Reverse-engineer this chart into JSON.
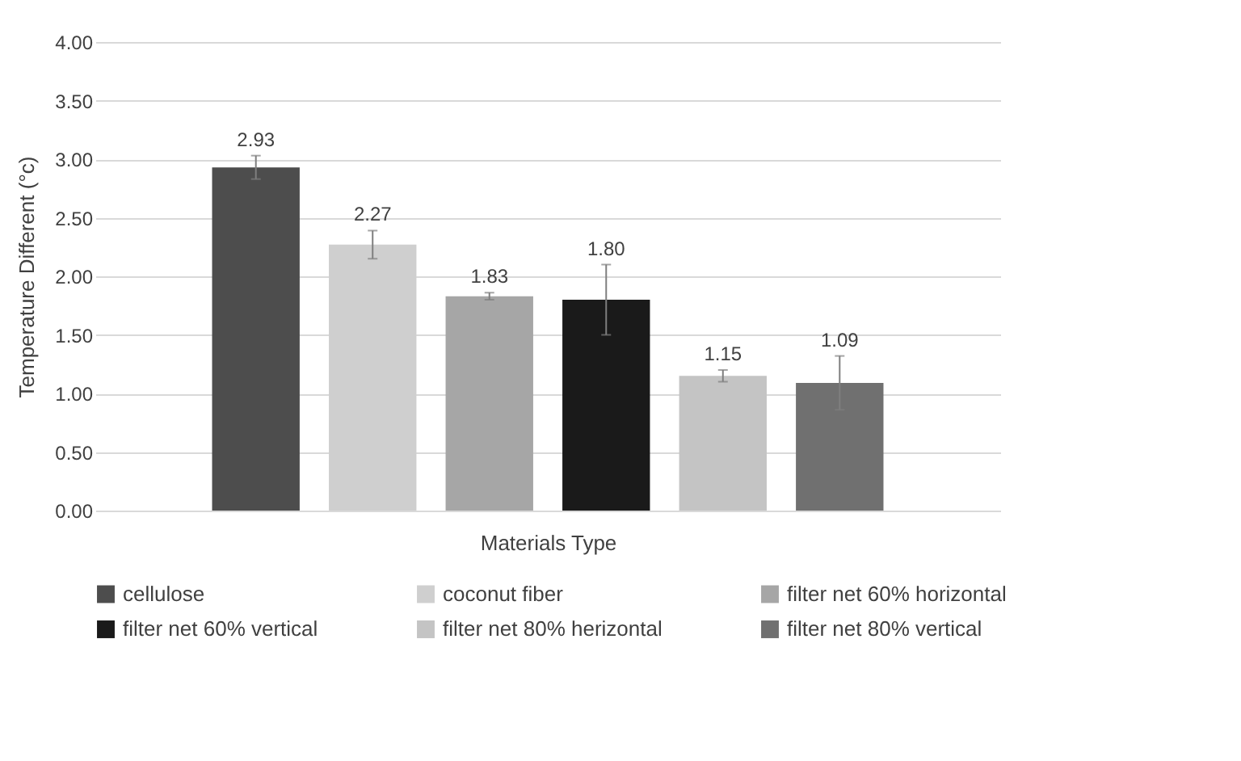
{
  "chart_data": {
    "type": "bar",
    "xlabel": "Materials Type",
    "ylabel": "Temperature Different (°c)",
    "categories": [
      null
    ],
    "series": [
      {
        "name": "cellulose",
        "color": "#4d4d4d",
        "values": [
          2.93
        ],
        "errors": [
          0.1
        ],
        "value_labels": [
          "2.93"
        ]
      },
      {
        "name": "coconut fiber",
        "color": "#cfcfcf",
        "values": [
          2.27
        ],
        "errors": [
          0.12
        ],
        "value_labels": [
          "2.27"
        ]
      },
      {
        "name": "filter net 60% horizontal",
        "color": "#a6a6a6",
        "values": [
          1.83
        ],
        "errors": [
          0.03
        ],
        "value_labels": [
          "1.83"
        ]
      },
      {
        "name": "filter net 60% vertical",
        "color": "#1a1a1a",
        "values": [
          1.8
        ],
        "errors": [
          0.3
        ],
        "value_labels": [
          "1.80"
        ]
      },
      {
        "name": "filter net 80% herizontal",
        "color": "#c4c4c4",
        "values": [
          1.15
        ],
        "errors": [
          0.05
        ],
        "value_labels": [
          "1.15"
        ]
      },
      {
        "name": "filter net 80% vertical",
        "color": "#707070",
        "values": [
          1.09
        ],
        "errors": [
          0.23
        ],
        "value_labels": [
          "1.09"
        ]
      }
    ],
    "ylim": [
      0,
      4
    ],
    "yticks": [
      {
        "value": 0,
        "label": "0.00"
      },
      {
        "value": 0.5,
        "label": "0.50"
      },
      {
        "value": 1,
        "label": "1.00"
      },
      {
        "value": 1.5,
        "label": "1.50"
      },
      {
        "value": 2,
        "label": "2.00"
      },
      {
        "value": 2.5,
        "label": "2.50"
      },
      {
        "value": 3,
        "label": "3.00"
      },
      {
        "value": 3.5,
        "label": "3.50"
      },
      {
        "value": 4,
        "label": "4.00"
      }
    ],
    "grid": "y",
    "legend": "bottom",
    "tick_labels": "y"
  }
}
